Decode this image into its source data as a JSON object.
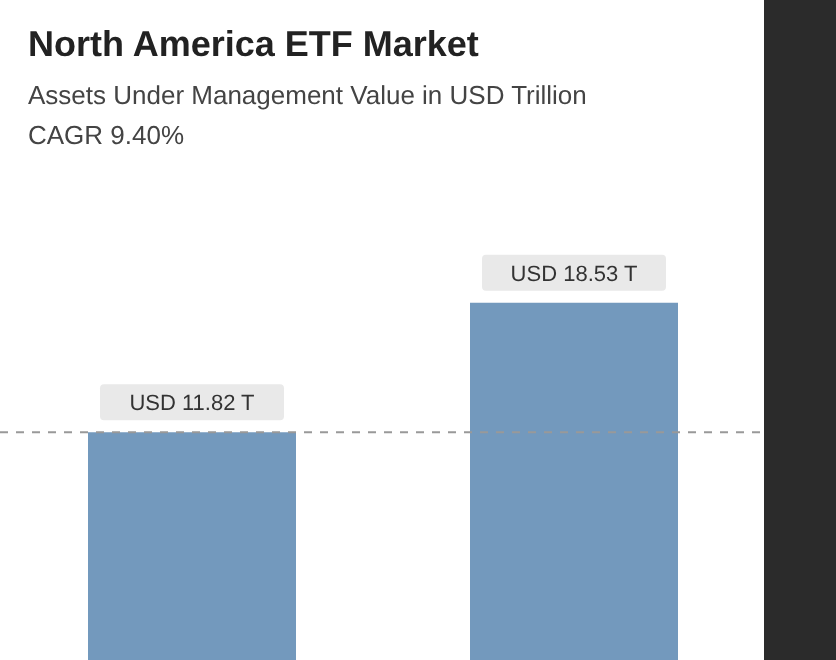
{
  "chart_data": {
    "type": "bar",
    "title": "North America ETF Market",
    "subtitle": "Assets Under Management Value in USD Trillion",
    "annotations": [
      "CAGR 9.40%"
    ],
    "categories": [
      null,
      null
    ],
    "values": [
      11.82,
      18.53
    ],
    "value_labels": [
      "USD 11.82 T",
      "USD 18.53 T"
    ],
    "color": "#7399bd",
    "ref_lines": [
      {
        "axis": "y",
        "value": 11.82,
        "color": "#999999",
        "line_style": "dashed"
      }
    ]
  }
}
